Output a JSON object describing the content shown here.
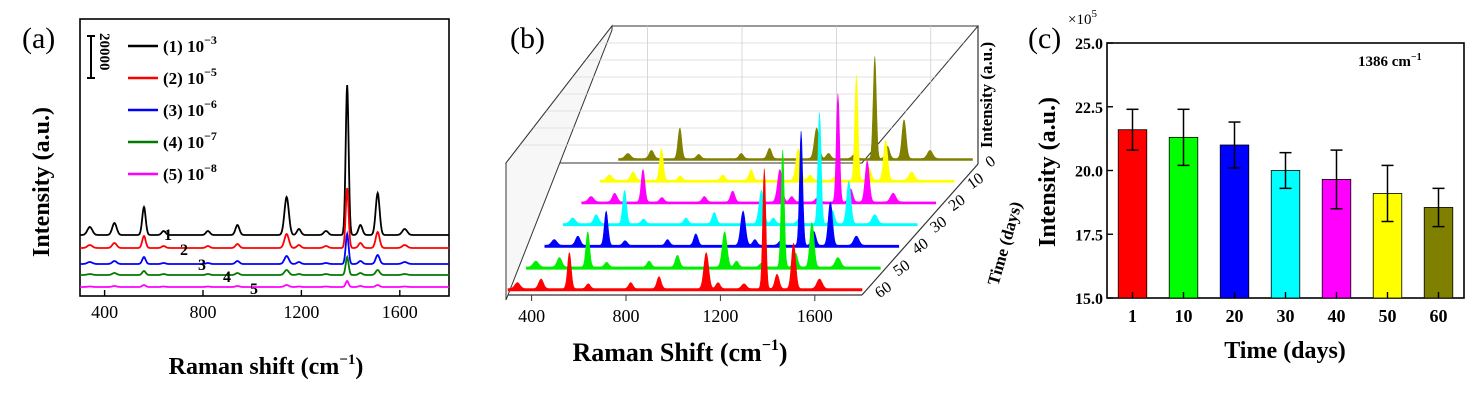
{
  "panels": {
    "a": {
      "label": "(a)",
      "ylabel": "Intensity (a.u.)",
      "xlabel_main": "Raman shift (cm",
      "xlabel_sup": "−1",
      "xlabel_close": ")",
      "x_ticks": [
        "400",
        "800",
        "1200",
        "1600"
      ],
      "scale_bar_label": "20000",
      "legend": [
        {
          "prefix": "(1) 10",
          "exp": "−3",
          "color": "#000000"
        },
        {
          "prefix": "(2) 10",
          "exp": "−5",
          "color": "#ff0000"
        },
        {
          "prefix": "(3) 10",
          "exp": "−6",
          "color": "#0000ff"
        },
        {
          "prefix": "(4) 10",
          "exp": "−7",
          "color": "#007a00"
        },
        {
          "prefix": "(5) 10",
          "exp": "−8",
          "color": "#ff00ff"
        }
      ],
      "curve_numbers": [
        "1",
        "2",
        "3",
        "4",
        "5"
      ]
    },
    "b": {
      "label": "(b)",
      "xlabel_main": "Raman Shift (cm",
      "xlabel_sup": "−1",
      "xlabel_close": ")",
      "x_ticks": [
        "400",
        "800",
        "1200",
        "1600"
      ],
      "z_label": "Intensity (a.u.)",
      "y_label": "Time (days)",
      "y_ticks": [
        "0",
        "10",
        "20",
        "30",
        "40",
        "50",
        "60"
      ]
    },
    "c": {
      "label": "(c)",
      "multiplier": "×10",
      "multiplier_exp": "5",
      "annotation": "1386 cm",
      "annotation_sup": "−1",
      "ylabel": "Intensity (a.u.)",
      "xlabel": "Time (days)",
      "y_ticks": [
        "15.0",
        "17.5",
        "20.0",
        "22.5",
        "25.0"
      ]
    }
  },
  "chart_data": [
    {
      "type": "line",
      "title": "(a)",
      "xlabel": "Raman shift (cm−1)",
      "ylabel": "Intensity (a.u.)",
      "xlim": [
        300,
        1800
      ],
      "peaks_cm1": [
        340,
        440,
        560,
        640,
        820,
        940,
        1140,
        1190,
        1300,
        1386,
        1440,
        1510,
        1620
      ],
      "series": [
        {
          "name": "(1) 10−3",
          "color": "#000000",
          "baseline": 54,
          "peak_heights": [
            8,
            12,
            28,
            4,
            4,
            10,
            38,
            6,
            4,
            150,
            10,
            42,
            6
          ]
        },
        {
          "name": "(2) 10−5",
          "color": "#ff0000",
          "baseline": 41,
          "peak_heights": [
            3,
            5,
            12,
            2,
            2,
            4,
            14,
            3,
            2,
            60,
            5,
            16,
            3
          ]
        },
        {
          "name": "(3) 10−6",
          "color": "#0000ff",
          "baseline": 25,
          "peak_heights": [
            2,
            3,
            7,
            1,
            1,
            3,
            8,
            2,
            1,
            30,
            3,
            9,
            2
          ]
        },
        {
          "name": "(4) 10−7",
          "color": "#007a00",
          "baseline": 14,
          "peak_heights": [
            1,
            2,
            4,
            1,
            1,
            2,
            5,
            1,
            1,
            18,
            2,
            5,
            1
          ]
        },
        {
          "name": "(5) 10−8",
          "color": "#ff00ff",
          "baseline": 2,
          "peak_heights": [
            0.5,
            1,
            2,
            0.5,
            0.5,
            1,
            2,
            0.5,
            0.5,
            6,
            1,
            2,
            0.5
          ]
        }
      ]
    },
    {
      "type": "waterfall",
      "title": "(b)",
      "xlabel": "Raman Shift (cm−1)",
      "ylabel": "Time (days)",
      "zlabel": "Intensity (a.u.)",
      "xlim": [
        300,
        1800
      ],
      "peaks_cm1": [
        340,
        440,
        560,
        640,
        820,
        940,
        1140,
        1190,
        1300,
        1386,
        1440,
        1510,
        1620
      ],
      "series": [
        {
          "name": "0",
          "color": "#ff0000"
        },
        {
          "name": "10",
          "color": "#00ee00"
        },
        {
          "name": "20",
          "color": "#0000ff"
        },
        {
          "name": "30",
          "color": "#00ffff"
        },
        {
          "name": "40",
          "color": "#ff00ff"
        },
        {
          "name": "50",
          "color": "#ffff00"
        },
        {
          "name": "60",
          "color": "#808000"
        }
      ],
      "relative_profile": [
        0.05,
        0.08,
        0.3,
        0.04,
        0.05,
        0.1,
        0.3,
        0.05,
        0.04,
        1.0,
        0.12,
        0.38,
        0.08
      ]
    },
    {
      "type": "bar",
      "title": "(c)",
      "annotation": "1386 cm−1",
      "xlabel": "Time (days)",
      "ylabel": "Intensity (a.u.)",
      "y_multiplier": "×10^5",
      "categories": [
        "1",
        "10",
        "20",
        "30",
        "40",
        "50",
        "60"
      ],
      "values": [
        21.6,
        21.3,
        21.0,
        20.0,
        19.65,
        19.1,
        18.55
      ],
      "errors": [
        0.8,
        1.1,
        0.9,
        0.7,
        1.15,
        1.1,
        0.75
      ],
      "colors": [
        "#ff0000",
        "#00ff00",
        "#0000ff",
        "#00ffff",
        "#ff00ff",
        "#ffff00",
        "#808000"
      ],
      "ylim": [
        15.0,
        25.0
      ]
    }
  ]
}
